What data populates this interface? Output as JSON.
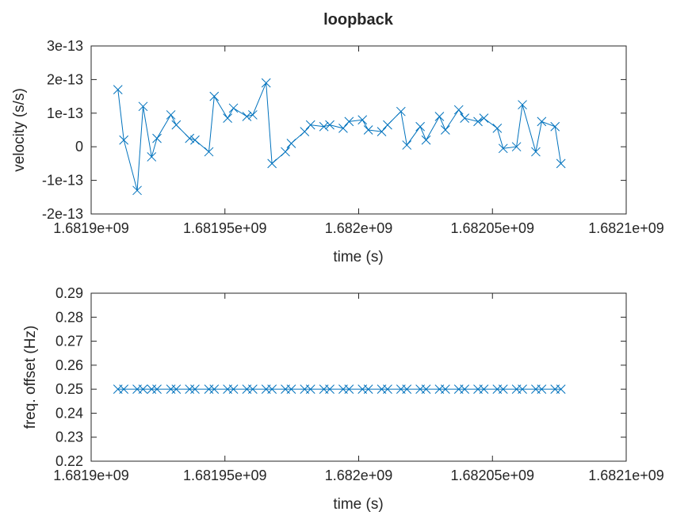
{
  "chart_data": [
    {
      "type": "line",
      "title": "loopback",
      "xlabel": "time (s)",
      "ylabel": "velocity (s/s)",
      "xlim": [
        1681900000,
        1682100000
      ],
      "ylim": [
        -2e-13,
        3e-13
      ],
      "xticks": [
        1681900000,
        1681950000,
        1682000000,
        1682050000,
        1682100000
      ],
      "xtick_labels": [
        "1.6819e+09",
        "1.68195e+09",
        "1.682e+09",
        "1.68205e+09",
        "1.6821e+09"
      ],
      "yticks": [
        -2e-13,
        -1e-13,
        0,
        1e-13,
        2e-13,
        3e-13
      ],
      "ytick_labels": [
        "-2e-13",
        "-1e-13",
        "0",
        "1e-13",
        "2e-13",
        "3e-13"
      ],
      "grid": false,
      "marker": "x",
      "color": "#0072bd",
      "series": [
        {
          "x": [
            1681910000,
            1681912200,
            1681917200,
            1681919400,
            1681922600,
            1681924600,
            1681929800,
            1681931800,
            1681936800,
            1681938800,
            1681944000,
            1681946000,
            1681951000,
            1681953200,
            1681958200,
            1681960400,
            1681965400,
            1681967600,
            1681972600,
            1681974800,
            1681979800,
            1681982000,
            1681987000,
            1681989200,
            1681994200,
            1681996400,
            1682001400,
            1682003600,
            1682008600,
            1682010800,
            1682015800,
            1682018000,
            1682023000,
            1682025200,
            1682030200,
            1682032400,
            1682037400,
            1682039600,
            1682044600,
            1682046800,
            1682051800,
            1682054000,
            1682059000,
            1682061200,
            1682066200,
            1682068400,
            1682073400,
            1682075600
          ],
          "y": [
            1.7e-13,
            2e-14,
            -1.3e-13,
            1.2e-13,
            -3e-14,
            2.5e-14,
            9.5e-14,
            6.5e-14,
            2.5e-14,
            2e-14,
            -1.5e-14,
            1.5e-13,
            8.5e-14,
            1.15e-13,
            9e-14,
            9.5e-14,
            1.9e-13,
            -5e-14,
            -1.5e-14,
            1e-14,
            4.5e-14,
            6.5e-14,
            6e-14,
            6.5e-14,
            5.5e-14,
            7.5e-14,
            8e-14,
            5e-14,
            4.5e-14,
            6.5e-14,
            1.05e-13,
            5e-15,
            6e-14,
            2e-14,
            9e-14,
            5e-14,
            1.1e-13,
            8.5e-14,
            7.5e-14,
            8.5e-14,
            5.5e-14,
            -5e-15,
            0,
            1.25e-13,
            -1.5e-14,
            7.5e-14,
            6e-14,
            -5e-14
          ]
        }
      ]
    },
    {
      "type": "line",
      "title": "",
      "xlabel": "time (s)",
      "ylabel": "freq. offset (Hz)",
      "xlim": [
        1681900000,
        1682100000
      ],
      "ylim": [
        0.22,
        0.29
      ],
      "xticks": [
        1681900000,
        1681950000,
        1682000000,
        1682050000,
        1682100000
      ],
      "xtick_labels": [
        "1.6819e+09",
        "1.68195e+09",
        "1.682e+09",
        "1.68205e+09",
        "1.6821e+09"
      ],
      "yticks": [
        0.22,
        0.23,
        0.24,
        0.25,
        0.26,
        0.27,
        0.28,
        0.29
      ],
      "ytick_labels": [
        "0.22",
        "0.23",
        "0.24",
        "0.25",
        "0.26",
        "0.27",
        "0.28",
        "0.29"
      ],
      "grid": false,
      "marker": "x",
      "color": "#0072bd",
      "series": [
        {
          "x": [
            1681910000,
            1681912200,
            1681917200,
            1681919400,
            1681922600,
            1681924600,
            1681929800,
            1681931800,
            1681936800,
            1681938800,
            1681944000,
            1681946000,
            1681951000,
            1681953200,
            1681958200,
            1681960400,
            1681965400,
            1681967600,
            1681972600,
            1681974800,
            1681979800,
            1681982000,
            1681987000,
            1681989200,
            1681994200,
            1681996400,
            1682001400,
            1682003600,
            1682008600,
            1682010800,
            1682015800,
            1682018000,
            1682023000,
            1682025200,
            1682030200,
            1682032400,
            1682037400,
            1682039600,
            1682044600,
            1682046800,
            1682051800,
            1682054000,
            1682059000,
            1682061200,
            1682066200,
            1682068400,
            1682073400,
            1682075600
          ],
          "y": [
            0.25,
            0.25,
            0.25,
            0.25,
            0.25,
            0.25,
            0.25,
            0.25,
            0.25,
            0.25,
            0.25,
            0.25,
            0.25,
            0.25,
            0.25,
            0.25,
            0.25,
            0.25,
            0.25,
            0.25,
            0.25,
            0.25,
            0.25,
            0.25,
            0.25,
            0.25,
            0.25,
            0.25,
            0.25,
            0.25,
            0.25,
            0.25,
            0.25,
            0.25,
            0.25,
            0.25,
            0.25,
            0.25,
            0.25,
            0.25,
            0.25,
            0.25,
            0.25,
            0.25,
            0.25,
            0.25,
            0.25,
            0.25
          ]
        }
      ]
    }
  ]
}
